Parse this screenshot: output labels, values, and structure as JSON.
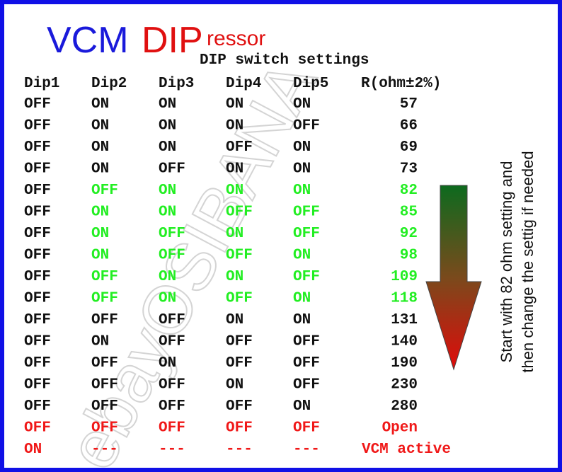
{
  "logo": {
    "part1": "VCM",
    "part2": "DIP",
    "part3": "ressor",
    "color1": "#1a1adb",
    "color2": "#e01010"
  },
  "title": "DIP switch settings",
  "watermark": "ebayOSIBANA",
  "headers": [
    "Dip1",
    "Dip2",
    "Dip3",
    "Dip4",
    "Dip5",
    "R(ohm±2%)"
  ],
  "rows": [
    {
      "cells": [
        "OFF",
        "ON",
        "ON",
        "ON",
        "ON",
        "57"
      ],
      "color": "#111",
      "dip1_color": "#111"
    },
    {
      "cells": [
        "OFF",
        "ON",
        "ON",
        "ON",
        "OFF",
        "66"
      ],
      "color": "#111",
      "dip1_color": "#111"
    },
    {
      "cells": [
        "OFF",
        "ON",
        "ON",
        "OFF",
        "ON",
        "69"
      ],
      "color": "#111",
      "dip1_color": "#111"
    },
    {
      "cells": [
        "OFF",
        "ON",
        "OFF",
        "ON",
        "ON",
        "73"
      ],
      "color": "#111",
      "dip1_color": "#111"
    },
    {
      "cells": [
        "OFF",
        "OFF",
        "ON",
        "ON",
        "ON",
        "82"
      ],
      "color": "#22ee22",
      "dip1_color": "#111"
    },
    {
      "cells": [
        "OFF",
        "ON",
        "ON",
        "OFF",
        "OFF",
        "85"
      ],
      "color": "#22ee22",
      "dip1_color": "#111"
    },
    {
      "cells": [
        "OFF",
        "ON",
        "OFF",
        "ON",
        "OFF",
        "92"
      ],
      "color": "#22ee22",
      "dip1_color": "#111"
    },
    {
      "cells": [
        "OFF",
        "ON",
        "OFF",
        "OFF",
        "ON",
        "98"
      ],
      "color": "#22ee22",
      "dip1_color": "#111"
    },
    {
      "cells": [
        "OFF",
        "OFF",
        "ON",
        "ON",
        "OFF",
        "109"
      ],
      "color": "#22ee22",
      "dip1_color": "#111"
    },
    {
      "cells": [
        "OFF",
        "OFF",
        "ON",
        "OFF",
        "ON",
        "118"
      ],
      "color": "#22ee22",
      "dip1_color": "#111"
    },
    {
      "cells": [
        "OFF",
        "OFF",
        "OFF",
        "ON",
        "ON",
        "131"
      ],
      "color": "#111",
      "dip1_color": "#111"
    },
    {
      "cells": [
        "OFF",
        "ON",
        "OFF",
        "OFF",
        "OFF",
        "140"
      ],
      "color": "#111",
      "dip1_color": "#111"
    },
    {
      "cells": [
        "OFF",
        "OFF",
        "ON",
        "OFF",
        "OFF",
        "190"
      ],
      "color": "#111",
      "dip1_color": "#111"
    },
    {
      "cells": [
        "OFF",
        "OFF",
        "OFF",
        "ON",
        "OFF",
        "230"
      ],
      "color": "#111",
      "dip1_color": "#111"
    },
    {
      "cells": [
        "OFF",
        "OFF",
        "OFF",
        "OFF",
        "ON",
        "280"
      ],
      "color": "#111",
      "dip1_color": "#111"
    },
    {
      "cells": [
        "OFF",
        "OFF",
        "OFF",
        "OFF",
        "OFF",
        "Open"
      ],
      "color": "#f01818",
      "dip1_color": "#f01818"
    },
    {
      "cells": [
        "ON",
        "---",
        "---",
        "---",
        "---",
        "VCM active"
      ],
      "color": "#f01818",
      "dip1_color": "#f01818"
    }
  ],
  "side_note": [
    "Start with 82 ohm setting and",
    "then change the settig if needed"
  ]
}
